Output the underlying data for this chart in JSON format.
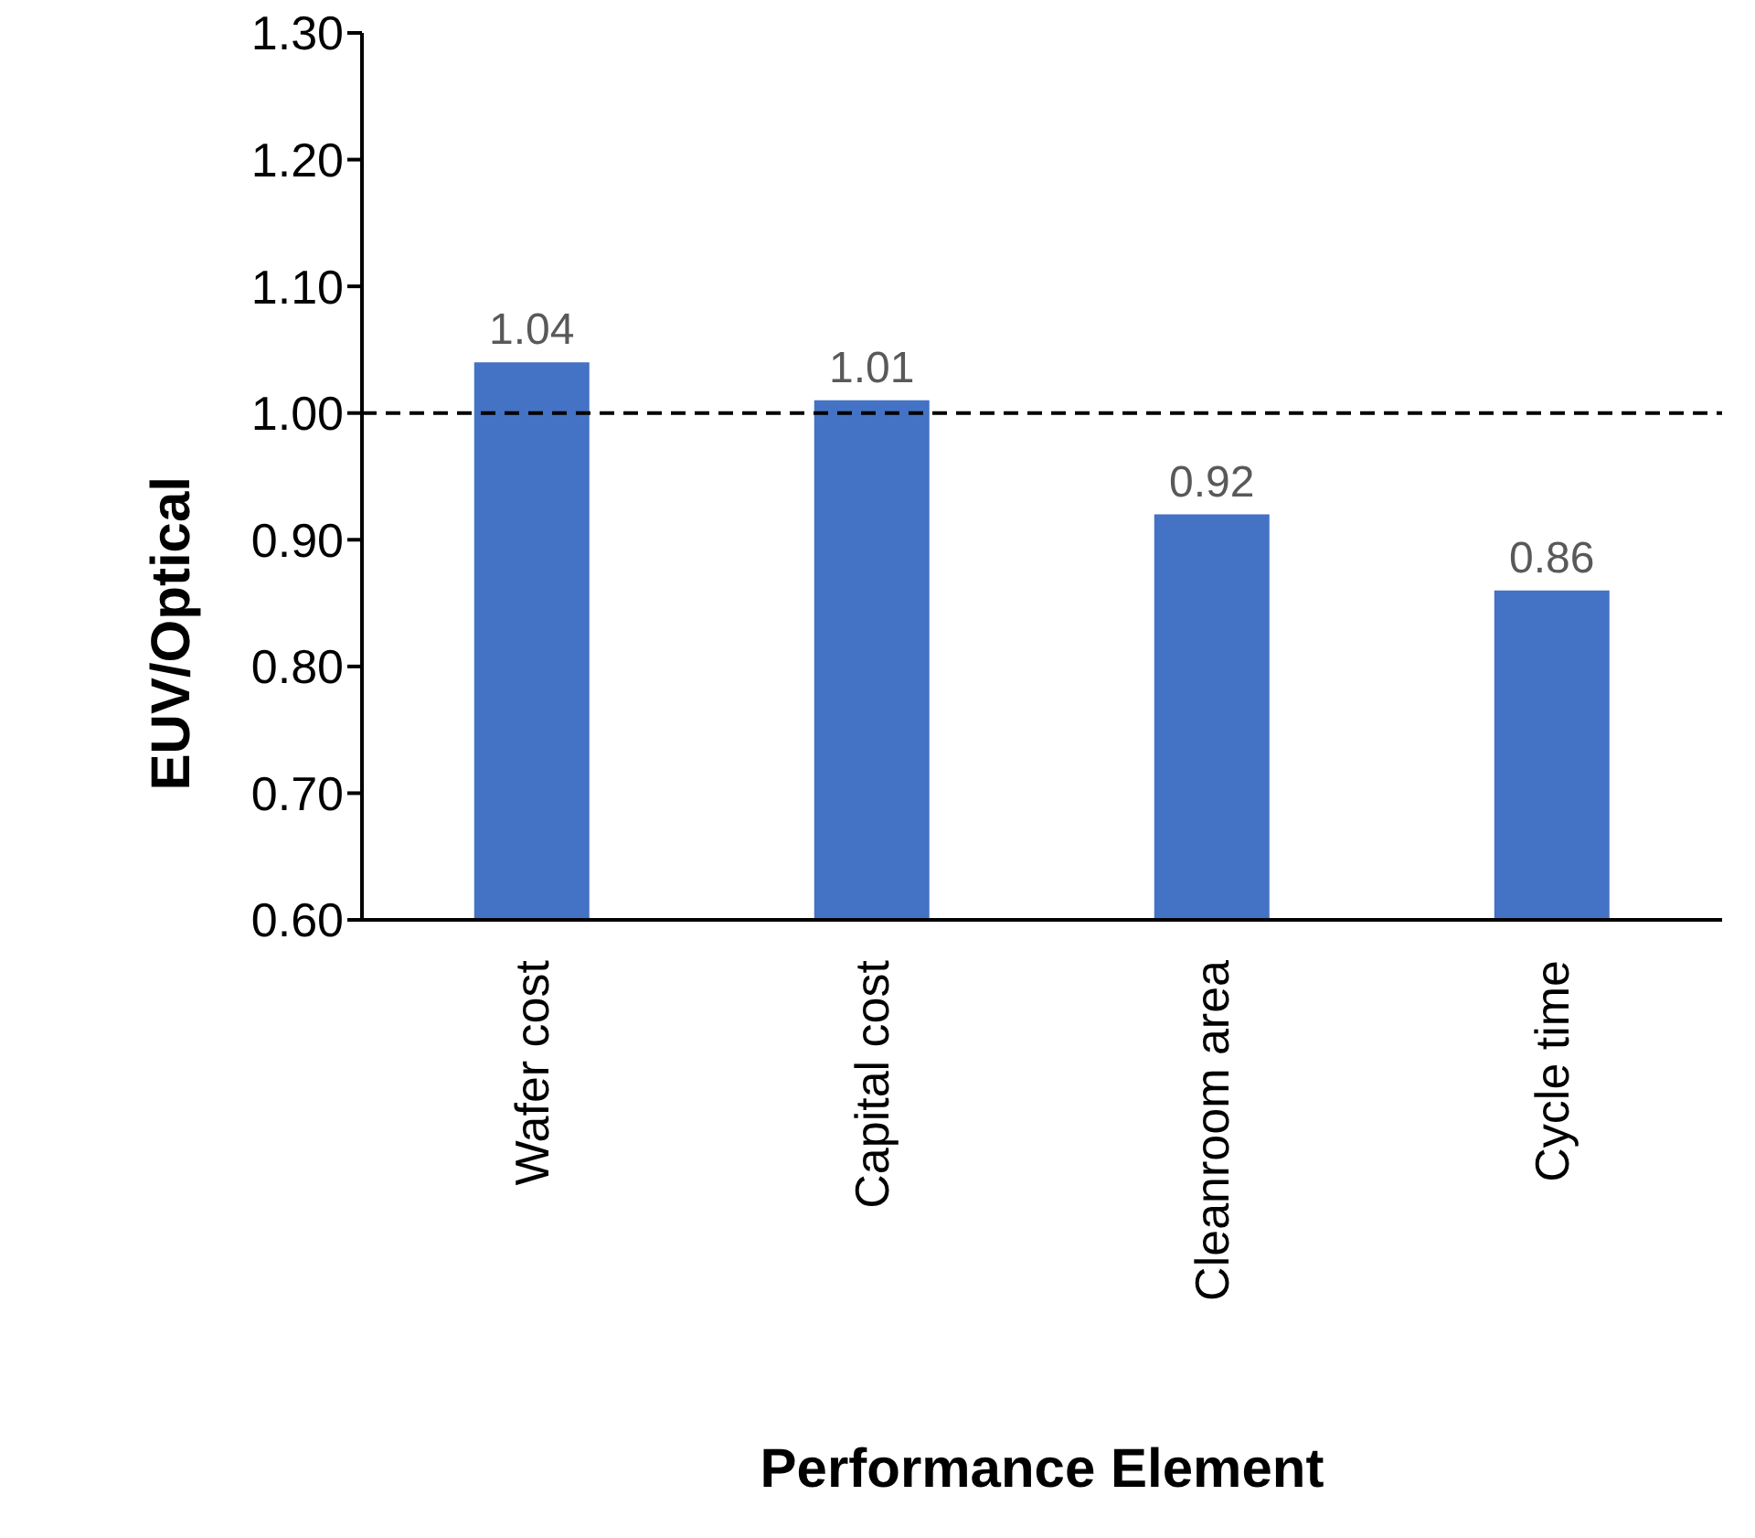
{
  "chart_data": {
    "type": "bar",
    "xlabel": "Performance Element",
    "ylabel": "EUV/Optical",
    "categories": [
      "Wafer cost",
      "Capital cost",
      "Cleanroom area",
      "Cycle time"
    ],
    "values": [
      1.04,
      1.01,
      0.92,
      0.86
    ],
    "color": "#4472c4",
    "data_labels": true,
    "ylim": [
      0.6,
      1.3
    ],
    "yticks": [
      {
        "value": 0.6,
        "label": "0.60"
      },
      {
        "value": 0.7,
        "label": "0.70"
      },
      {
        "value": 0.8,
        "label": "0.80"
      },
      {
        "value": 0.9,
        "label": "0.90"
      },
      {
        "value": 1.0,
        "label": "1.00"
      },
      {
        "value": 1.1,
        "label": "1.10"
      },
      {
        "value": 1.2,
        "label": "1.20"
      },
      {
        "value": 1.3,
        "label": "1.30"
      }
    ],
    "ref_lines": [
      {
        "axis": "y",
        "value": 1.0,
        "color": "#000000",
        "line_style": "dashed"
      }
    ],
    "grid": false,
    "legend": false
  }
}
